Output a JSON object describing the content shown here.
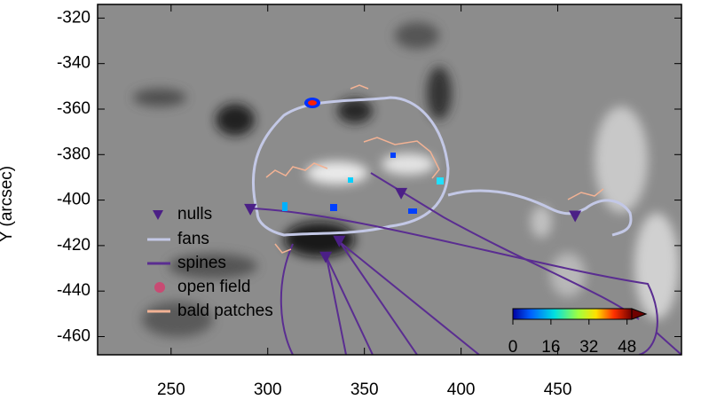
{
  "chart_data": {
    "type": "scatter",
    "ylabel": "Y (arcsec)",
    "xlim": [
      212,
      514
    ],
    "ylim": [
      -468,
      -314
    ],
    "xticks": [
      250,
      300,
      350,
      400,
      450
    ],
    "yticks": [
      -320,
      -340,
      -360,
      -380,
      -400,
      -420,
      -440,
      -460
    ],
    "series": [
      {
        "name": "nulls",
        "color": "#4b1f86",
        "x": [
          291,
          369,
          337,
          330,
          459
        ],
        "y": [
          -404,
          -397,
          -418,
          -425,
          -407
        ]
      }
    ],
    "legend": [
      {
        "name": "fans",
        "color": "#c3c8e6"
      },
      {
        "name": "spines",
        "color": "#5a2d91"
      },
      {
        "name": "open field",
        "color": "#c84b73"
      },
      {
        "name": "bald patches",
        "color": "#f2b294"
      }
    ],
    "colorbar": {
      "lim": [
        0,
        50
      ],
      "ticks": [
        0,
        16,
        32,
        48
      ]
    }
  }
}
